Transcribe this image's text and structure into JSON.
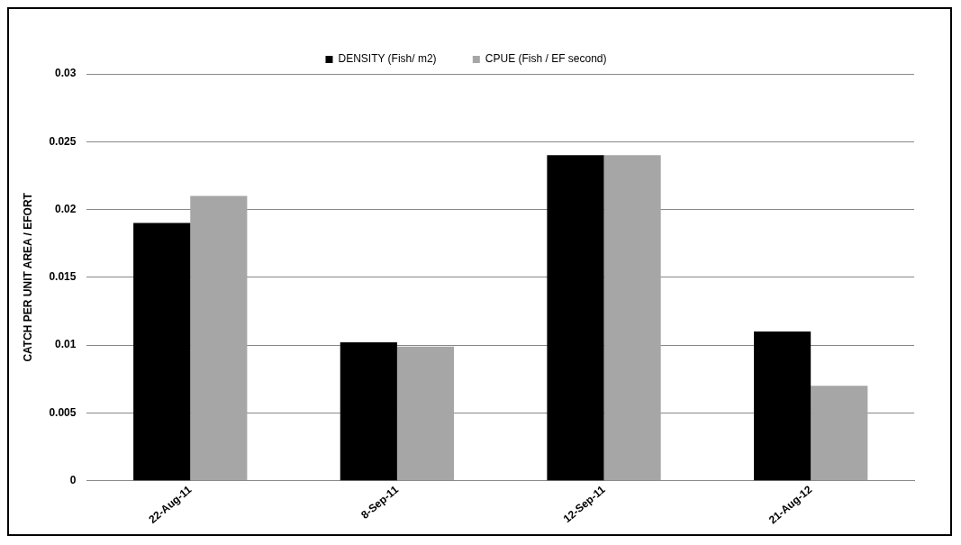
{
  "chart_data": {
    "type": "bar",
    "ylabel": "CATCH PER UNIT AREA / EFORT",
    "categories": [
      "22-Aug-11",
      "8-Sep-11",
      "12-Sep-11",
      "21-Aug-12"
    ],
    "series": [
      {
        "name": "DENSITY (Fish/ m2)",
        "color": "#000000",
        "values": [
          0.019,
          0.0102,
          0.024,
          0.011
        ]
      },
      {
        "name": "CPUE (Fish / EF second)",
        "color": "#a6a6a6",
        "values": [
          0.021,
          0.0099,
          0.024,
          0.007
        ]
      }
    ],
    "ylim": [
      0,
      0.03
    ],
    "yticks": [
      0,
      0.005,
      0.01,
      0.015,
      0.02,
      0.025,
      0.03
    ],
    "grid": "y",
    "legend": "top"
  }
}
